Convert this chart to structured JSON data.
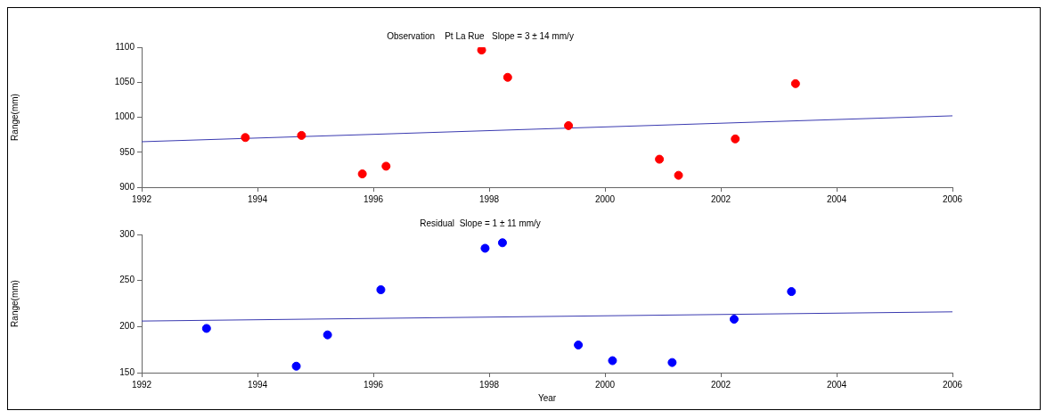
{
  "chart_data": [
    {
      "type": "scatter",
      "title": "Observation    Pt La Rue   Slope = 3 ± 14 mm/y",
      "ylabel": "Range(mm)",
      "xlim": [
        1992,
        2006
      ],
      "xticks": [
        1992,
        1994,
        1996,
        1998,
        2000,
        2002,
        2004,
        2006
      ],
      "ylim": [
        900,
        1100
      ],
      "yticks": [
        900,
        950,
        1000,
        1050,
        1100
      ],
      "grid": false,
      "series": [
        {
          "marker": "circle",
          "color": "#ff0000",
          "x": [
            1993.79,
            1994.76,
            1995.81,
            1996.22,
            1997.87,
            1998.32,
            1999.37,
            2000.94,
            2001.27,
            2002.25,
            2003.29
          ],
          "values": [
            971,
            974,
            919,
            930,
            1096,
            1057,
            988,
            940,
            917,
            969,
            1048
          ]
        },
        {
          "type": "line",
          "marker": "none",
          "color": "#3a3ab0",
          "x": [
            1992,
            2006
          ],
          "values": [
            965,
            1002
          ]
        }
      ]
    },
    {
      "type": "scatter",
      "title": "Residual  Slope = 1 ± 11 mm/y",
      "xlabel": "Year",
      "ylabel": "Range(mm)",
      "xlim": [
        1992,
        2006
      ],
      "xticks": [
        1992,
        1994,
        1996,
        1998,
        2000,
        2002,
        2004,
        2006
      ],
      "ylim": [
        150,
        300
      ],
      "yticks": [
        150,
        200,
        250,
        300
      ],
      "grid": false,
      "series": [
        {
          "marker": "circle",
          "color": "#0000ff",
          "x": [
            1993.12,
            1994.67,
            1995.21,
            1996.13,
            1997.93,
            1998.23,
            1999.54,
            2000.13,
            2001.16,
            2002.23,
            2003.22
          ],
          "values": [
            198,
            157,
            191,
            240,
            285,
            291,
            180,
            163,
            161,
            208,
            238
          ]
        },
        {
          "type": "line",
          "marker": "none",
          "color": "#3a3ab0",
          "x": [
            1992,
            2006
          ],
          "values": [
            206,
            216
          ]
        }
      ]
    }
  ]
}
